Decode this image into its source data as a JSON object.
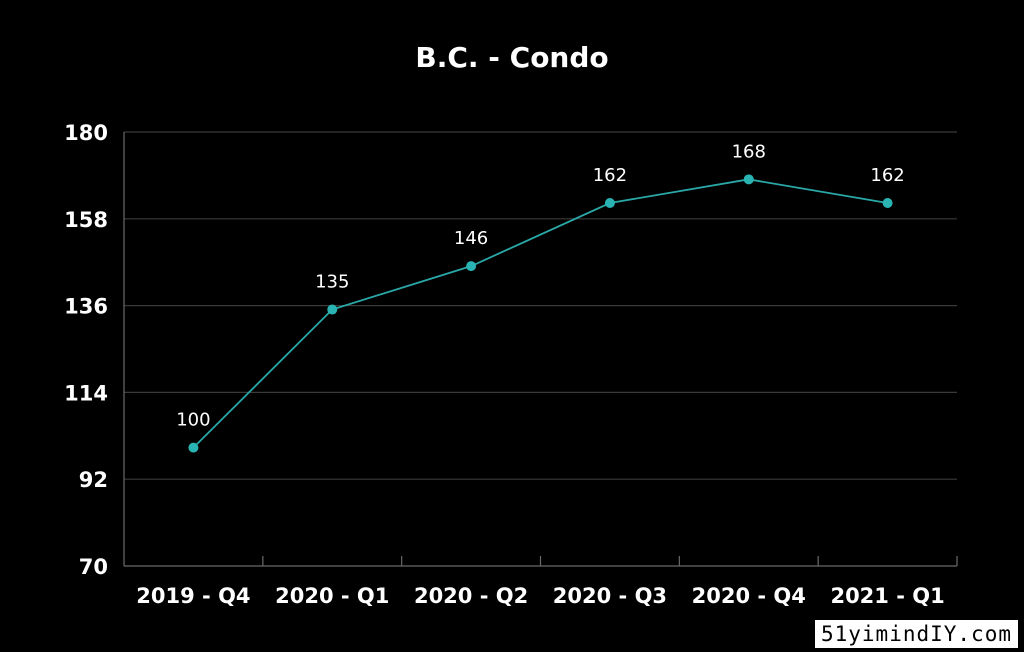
{
  "chart_data": {
    "type": "line",
    "title": "B.C. - Condo",
    "categories": [
      "2019 - Q4",
      "2020 - Q1",
      "2020 - Q2",
      "2020 - Q3",
      "2020 - Q4",
      "2021 - Q1"
    ],
    "series": [
      {
        "values": [
          100,
          135,
          146,
          162,
          168,
          162
        ]
      }
    ],
    "ylim": [
      70,
      180
    ],
    "yticks": [
      70,
      92,
      114,
      136,
      158,
      180
    ],
    "grid": true,
    "colors": {
      "line": "#2aa8a8",
      "marker": "#2ab3b3",
      "grid": "#3a3a3a",
      "axis": "#6a6a6a",
      "text": "#ffffff",
      "background": "#000000"
    }
  },
  "watermark": "51yimindIY.com"
}
